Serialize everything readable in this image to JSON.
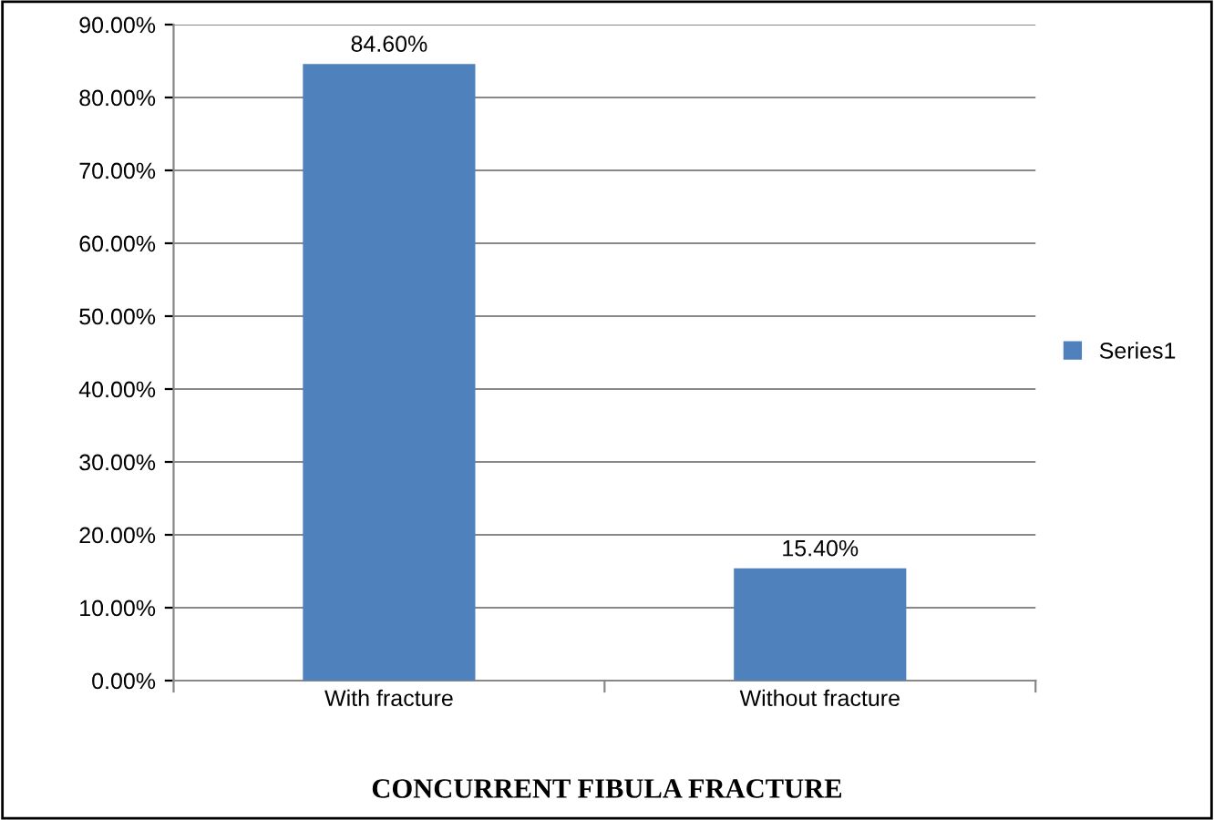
{
  "chart_data": {
    "type": "bar",
    "title": "CONCURRENT FIBULA FRACTURE",
    "categories": [
      "With fracture",
      "Without fracture"
    ],
    "series": [
      {
        "name": "Series1",
        "color": "#4f81bd",
        "values": [
          84.6,
          15.4
        ],
        "value_labels": [
          "84.60%",
          "15.40%"
        ]
      }
    ],
    "ylim": [
      0,
      90
    ],
    "yticks": [
      {
        "value": 0,
        "label": "0.00%"
      },
      {
        "value": 10,
        "label": "10.00%"
      },
      {
        "value": 20,
        "label": "20.00%"
      },
      {
        "value": 30,
        "label": "30.00%"
      },
      {
        "value": 40,
        "label": "40.00%"
      },
      {
        "value": 50,
        "label": "50.00%"
      },
      {
        "value": 60,
        "label": "60.00%"
      },
      {
        "value": 70,
        "label": "70.00%"
      },
      {
        "value": 80,
        "label": "80.00%"
      },
      {
        "value": 90,
        "label": "90.00%"
      }
    ],
    "grid": "y",
    "legend": "right"
  }
}
